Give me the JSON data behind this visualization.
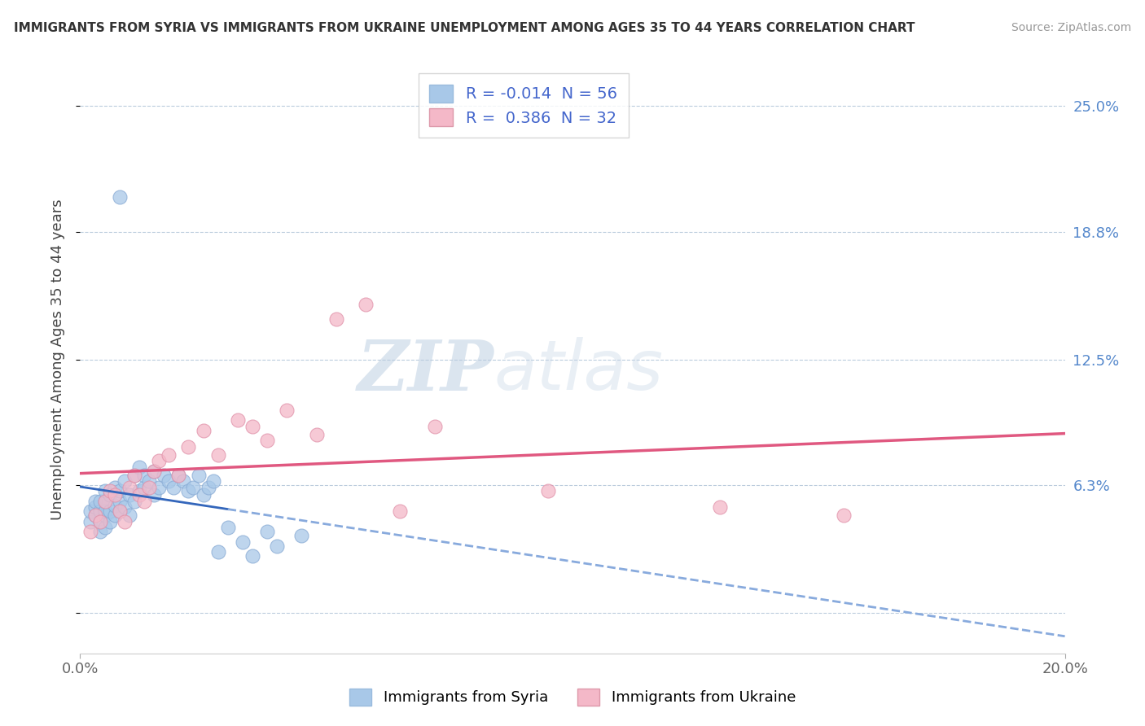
{
  "title": "IMMIGRANTS FROM SYRIA VS IMMIGRANTS FROM UKRAINE UNEMPLOYMENT AMONG AGES 35 TO 44 YEARS CORRELATION CHART",
  "source": "Source: ZipAtlas.com",
  "ylabel": "Unemployment Among Ages 35 to 44 years",
  "xlim": [
    0.0,
    0.2
  ],
  "ylim": [
    -0.02,
    0.27
  ],
  "ytick_positions": [
    0.0,
    0.063,
    0.125,
    0.188,
    0.25
  ],
  "ytick_labels": [
    "",
    "6.3%",
    "12.5%",
    "18.8%",
    "25.0%"
  ],
  "color_syria": "#a8c8e8",
  "color_ukraine": "#f4b8c8",
  "trendline_syria_solid_color": "#3366bb",
  "trendline_syria_dash_color": "#88aadd",
  "trendline_ukraine_color": "#e05880",
  "watermark_zip": "ZIP",
  "watermark_atlas": "atlas",
  "background_color": "#ffffff",
  "grid_color": "#bbccdd",
  "legend_label_syria": "R = -0.014  N = 56",
  "legend_label_ukraine": "R =  0.386  N = 32",
  "syria_x": [
    0.002,
    0.002,
    0.003,
    0.003,
    0.003,
    0.004,
    0.004,
    0.004,
    0.004,
    0.005,
    0.005,
    0.005,
    0.005,
    0.005,
    0.006,
    0.006,
    0.006,
    0.007,
    0.007,
    0.007,
    0.008,
    0.008,
    0.008,
    0.009,
    0.009,
    0.01,
    0.01,
    0.011,
    0.011,
    0.012,
    0.012,
    0.013,
    0.013,
    0.014,
    0.015,
    0.015,
    0.016,
    0.017,
    0.018,
    0.019,
    0.02,
    0.021,
    0.022,
    0.023,
    0.024,
    0.025,
    0.026,
    0.027,
    0.028,
    0.03,
    0.033,
    0.035,
    0.038,
    0.04,
    0.045,
    0.008
  ],
  "syria_y": [
    0.045,
    0.05,
    0.048,
    0.052,
    0.055,
    0.04,
    0.045,
    0.05,
    0.055,
    0.042,
    0.048,
    0.05,
    0.055,
    0.06,
    0.045,
    0.05,
    0.058,
    0.048,
    0.053,
    0.062,
    0.05,
    0.055,
    0.06,
    0.052,
    0.065,
    0.048,
    0.058,
    0.055,
    0.068,
    0.06,
    0.072,
    0.062,
    0.068,
    0.065,
    0.058,
    0.07,
    0.062,
    0.068,
    0.065,
    0.062,
    0.068,
    0.065,
    0.06,
    0.062,
    0.068,
    0.058,
    0.062,
    0.065,
    0.03,
    0.042,
    0.035,
    0.028,
    0.04,
    0.033,
    0.038,
    0.205
  ],
  "ukraine_x": [
    0.002,
    0.003,
    0.004,
    0.005,
    0.006,
    0.007,
    0.008,
    0.009,
    0.01,
    0.011,
    0.012,
    0.013,
    0.014,
    0.015,
    0.016,
    0.018,
    0.02,
    0.022,
    0.025,
    0.028,
    0.032,
    0.035,
    0.038,
    0.042,
    0.048,
    0.052,
    0.058,
    0.065,
    0.072,
    0.095,
    0.13,
    0.155
  ],
  "ukraine_y": [
    0.04,
    0.048,
    0.045,
    0.055,
    0.06,
    0.058,
    0.05,
    0.045,
    0.062,
    0.068,
    0.058,
    0.055,
    0.062,
    0.07,
    0.075,
    0.078,
    0.068,
    0.082,
    0.09,
    0.078,
    0.095,
    0.092,
    0.085,
    0.1,
    0.088,
    0.145,
    0.152,
    0.05,
    0.092,
    0.06,
    0.052,
    0.048
  ],
  "R_syria": -0.014,
  "R_ukraine": 0.386,
  "N_syria": 56,
  "N_ukraine": 32
}
